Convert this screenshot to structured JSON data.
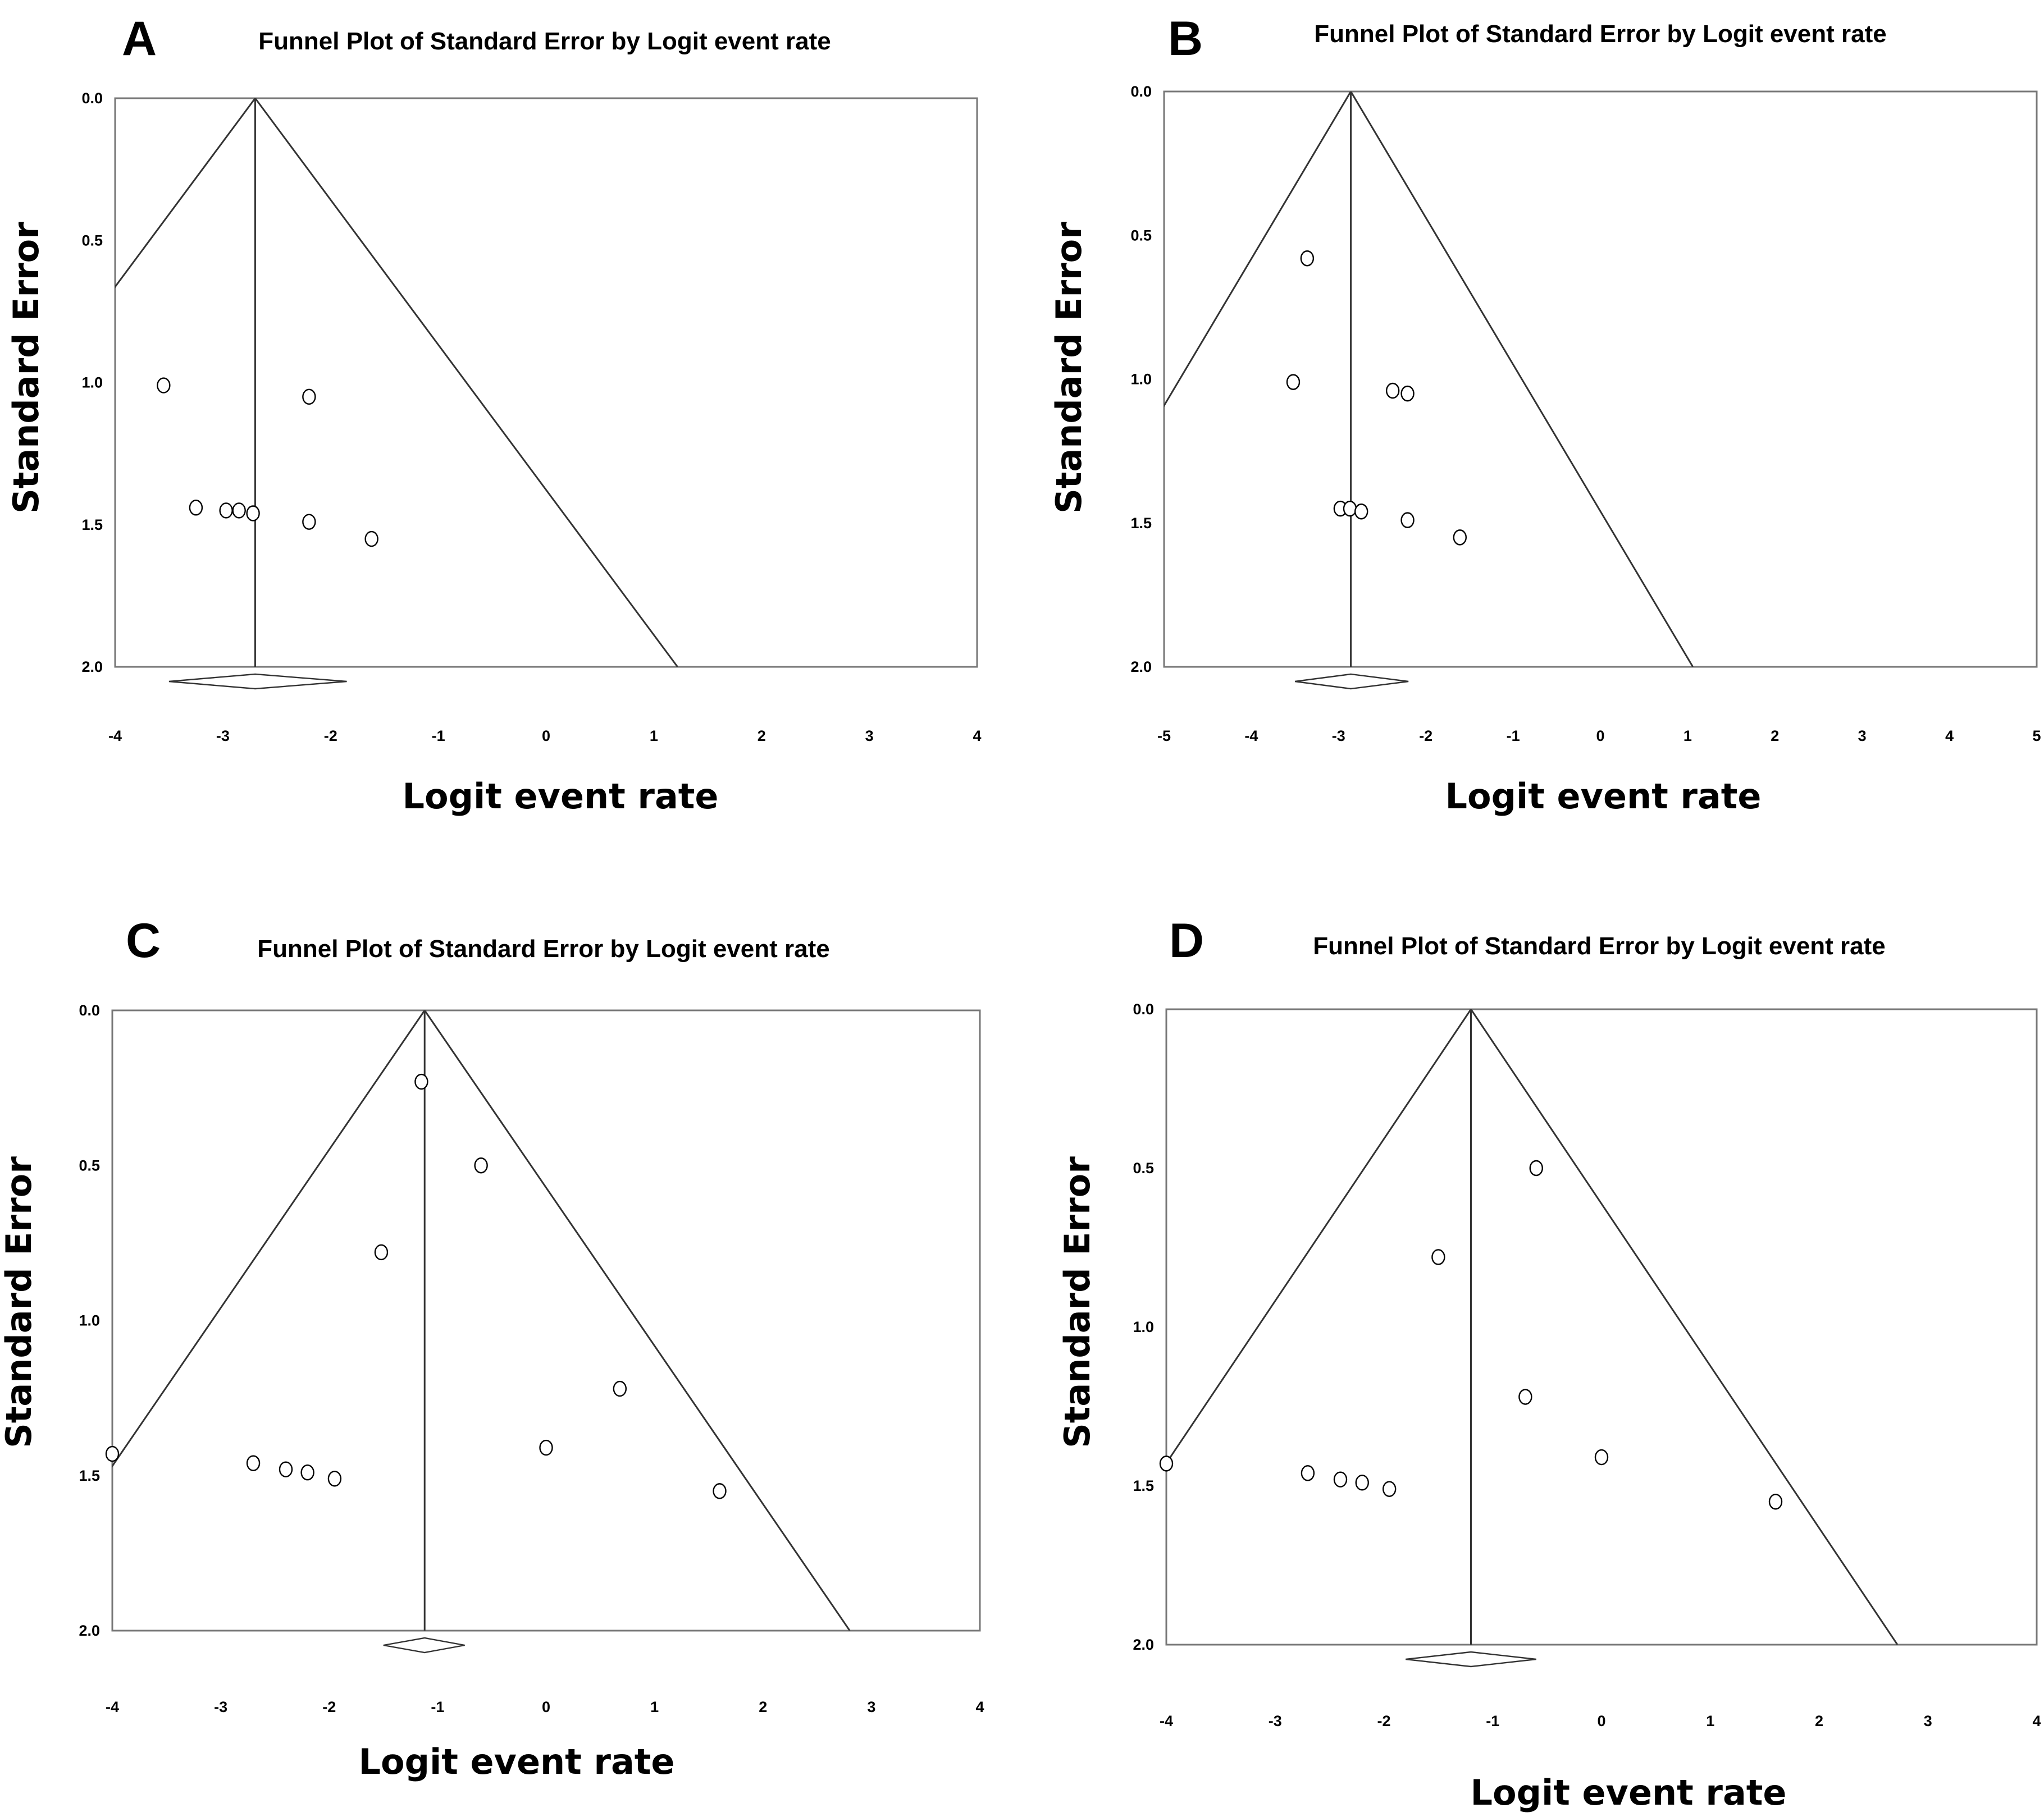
{
  "chart_data": [
    {
      "panel": "A",
      "type": "scatter",
      "title": "Funnel Plot of Standard Error by Logit event rate",
      "xlabel": "Logit event rate",
      "ylabel": "Standard Error",
      "xlim": [
        -4,
        4
      ],
      "ylim": [
        0.0,
        2.0
      ],
      "xticks": [
        -4,
        -3,
        -2,
        -1,
        0,
        1,
        2,
        3,
        4
      ],
      "yticks": [
        "0.0",
        "0.5",
        "1.0",
        "1.5",
        "2.0"
      ],
      "pooled_estimate": -2.7,
      "diamond": [
        -3.5,
        -1.85
      ],
      "points": [
        {
          "x": -3.55,
          "y": 1.01
        },
        {
          "x": -2.2,
          "y": 1.05
        },
        {
          "x": -3.25,
          "y": 1.44
        },
        {
          "x": -2.97,
          "y": 1.45
        },
        {
          "x": -2.85,
          "y": 1.45
        },
        {
          "x": -2.72,
          "y": 1.46
        },
        {
          "x": -2.2,
          "y": 1.49
        },
        {
          "x": -1.62,
          "y": 1.55
        }
      ]
    },
    {
      "panel": "B",
      "type": "scatter",
      "title": "Funnel Plot of Standard Error by Logit event rate",
      "xlabel": "Logit event rate",
      "ylabel": "Standard Error",
      "xlim": [
        -5,
        5
      ],
      "ylim": [
        0.0,
        2.0
      ],
      "xticks": [
        -5,
        -4,
        -3,
        -2,
        -1,
        0,
        1,
        2,
        3,
        4,
        5
      ],
      "yticks": [
        "0.0",
        "0.5",
        "1.0",
        "1.5",
        "2.0"
      ],
      "pooled_estimate": -2.86,
      "diamond": [
        -3.5,
        -2.2
      ],
      "points": [
        {
          "x": -3.36,
          "y": 0.58
        },
        {
          "x": -3.52,
          "y": 1.01
        },
        {
          "x": -2.38,
          "y": 1.04
        },
        {
          "x": -2.21,
          "y": 1.05
        },
        {
          "x": -2.98,
          "y": 1.45
        },
        {
          "x": -2.87,
          "y": 1.45
        },
        {
          "x": -2.74,
          "y": 1.46
        },
        {
          "x": -2.21,
          "y": 1.49
        },
        {
          "x": -1.61,
          "y": 1.55
        }
      ]
    },
    {
      "panel": "C",
      "type": "scatter",
      "title": "Funnel Plot of Standard Error by Logit event rate",
      "xlabel": "Logit event rate",
      "ylabel": "Standard Error",
      "xlim": [
        -4,
        4
      ],
      "ylim": [
        0.0,
        2.0
      ],
      "xticks": [
        -4,
        -3,
        -2,
        -1,
        0,
        1,
        2,
        3,
        4
      ],
      "yticks": [
        "0.0",
        "0.5",
        "1.0",
        "1.5",
        "2.0"
      ],
      "pooled_estimate": -1.12,
      "diamond": [
        -1.5,
        -0.75
      ],
      "points": [
        {
          "x": -1.15,
          "y": 0.23
        },
        {
          "x": -0.6,
          "y": 0.5
        },
        {
          "x": -1.52,
          "y": 0.78
        },
        {
          "x": 0.68,
          "y": 1.22
        },
        {
          "x": 0.0,
          "y": 1.41
        },
        {
          "x": -4.0,
          "y": 1.43
        },
        {
          "x": -2.7,
          "y": 1.46
        },
        {
          "x": -2.4,
          "y": 1.48
        },
        {
          "x": -2.2,
          "y": 1.49
        },
        {
          "x": -1.95,
          "y": 1.51
        },
        {
          "x": 1.6,
          "y": 1.55
        }
      ]
    },
    {
      "panel": "D",
      "type": "scatter",
      "title": "Funnel Plot of Standard Error by Logit event rate",
      "xlabel": "Logit event rate",
      "ylabel": "Standard Error",
      "xlim": [
        -4,
        4
      ],
      "ylim": [
        0.0,
        2.0
      ],
      "xticks": [
        -4,
        -3,
        -2,
        -1,
        0,
        1,
        2,
        3,
        4
      ],
      "yticks": [
        "0.0",
        "0.5",
        "1.0",
        "1.5",
        "2.0"
      ],
      "pooled_estimate": -1.2,
      "diamond": [
        -1.8,
        -0.6
      ],
      "points": [
        {
          "x": -0.6,
          "y": 0.5
        },
        {
          "x": -1.5,
          "y": 0.78
        },
        {
          "x": -0.7,
          "y": 1.22
        },
        {
          "x": 0.0,
          "y": 1.41
        },
        {
          "x": -4.0,
          "y": 1.43
        },
        {
          "x": -2.7,
          "y": 1.46
        },
        {
          "x": -2.4,
          "y": 1.48
        },
        {
          "x": -2.2,
          "y": 1.49
        },
        {
          "x": -1.95,
          "y": 1.51
        },
        {
          "x": 1.6,
          "y": 1.55
        }
      ]
    }
  ]
}
